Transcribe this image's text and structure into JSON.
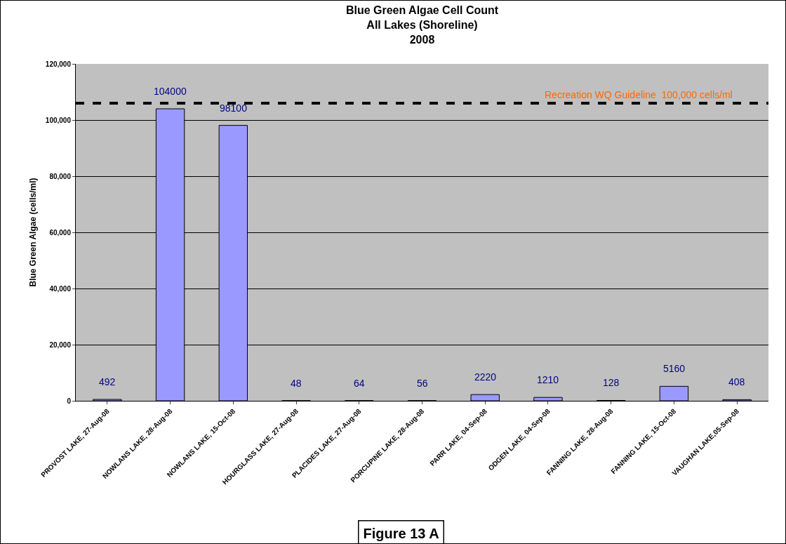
{
  "chart_data": {
    "type": "bar",
    "title": "Blue Green Algae Cell Count\nAll Lakes (Shoreline)\n2008",
    "ylabel": "Blue Green Algae (cells/ml)",
    "categories": [
      "PROVOST LAKE, 27-Aug-08",
      "NOWLANS LAKE, 28-Aug-08",
      "NOWLANS LAKE, 15-Oct-08",
      "HOURGLASS LAKE, 27-Aug-08",
      "PLACIDES LAKE, 27-Aug-08",
      "PORCUPINE LAKE, 28-Aug-08",
      "PARR LAKE, 04-Sep-08",
      "ODGEN LAKE, 04-Sep-08",
      "FANNING LAKE, 28-Aug-08",
      "FANNING LAKE, 15-Oct-08",
      "VAUGHAN LAKE,05-Sep-08"
    ],
    "values": [
      492,
      104000,
      98100,
      48,
      64,
      56,
      2220,
      1210,
      128,
      5160,
      408
    ],
    "color": "#9999ff",
    "data_labels": true,
    "ylim": [
      0,
      120000
    ],
    "yticks": [
      {
        "value": 0,
        "label": "0"
      },
      {
        "value": 20000,
        "label": "20,000"
      },
      {
        "value": 40000,
        "label": "40,000"
      },
      {
        "value": 60000,
        "label": "60,000"
      },
      {
        "value": 80000,
        "label": "80,000"
      },
      {
        "value": 100000,
        "label": "100,000"
      },
      {
        "value": 120000,
        "label": "120,000"
      }
    ],
    "grid": "y",
    "ref_lines": [
      {
        "axis": "y",
        "value": 106000,
        "label": "Recreation WQ Guideline  100,000 cells/ml",
        "color": "#000000",
        "line_style": "dashed"
      }
    ],
    "annotations": [
      "Figure 13 A"
    ]
  }
}
